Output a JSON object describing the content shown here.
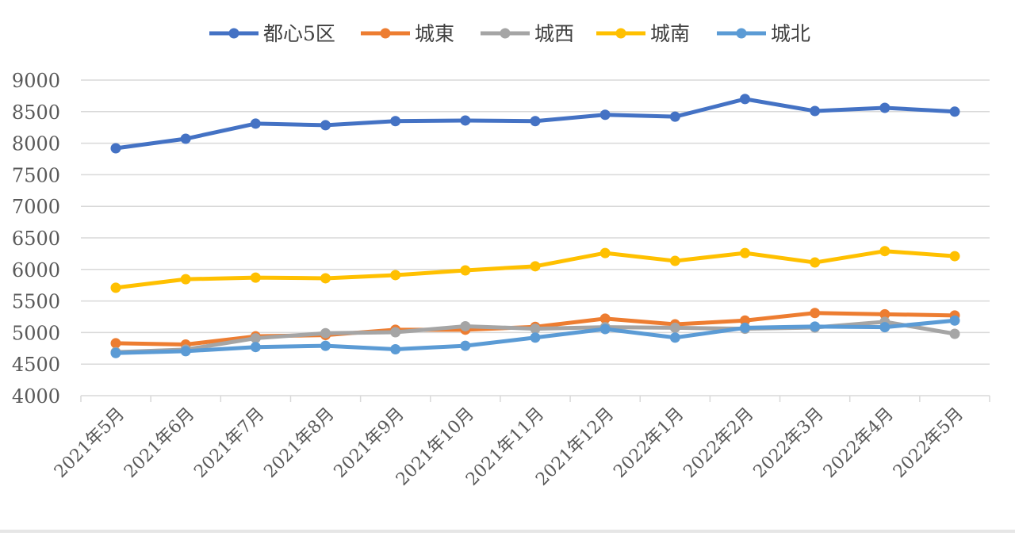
{
  "chart_data": {
    "type": "line",
    "title": "",
    "xlabel": "",
    "ylabel": "",
    "ylim": [
      4000,
      9000
    ],
    "yticks": [
      4000,
      4500,
      5000,
      5500,
      6000,
      6500,
      7000,
      7500,
      8000,
      8500,
      9000
    ],
    "grid": true,
    "legend_position": "top",
    "categories": [
      "2021年5月",
      "2021年6月",
      "2021年7月",
      "2021年8月",
      "2021年9月",
      "2021年10月",
      "2021年11月",
      "2021年12月",
      "2022年1月",
      "2022年2月",
      "2022年3月",
      "2022年4月",
      "2022年5月"
    ],
    "series": [
      {
        "name": "都心5区",
        "color": "#4472C4",
        "values": [
          7920,
          8070,
          8310,
          8285,
          8350,
          8360,
          8350,
          8450,
          8420,
          8700,
          8510,
          8560,
          8500
        ]
      },
      {
        "name": "城東",
        "color": "#ED7D31",
        "values": [
          4830,
          4810,
          4940,
          4960,
          5045,
          5045,
          5090,
          5220,
          5130,
          5190,
          5310,
          5290,
          5270
        ]
      },
      {
        "name": "城西",
        "color": "#A5A5A5",
        "values": [
          4690,
          4730,
          4910,
          4990,
          5005,
          5100,
          5060,
          5085,
          5075,
          5060,
          5080,
          5170,
          4980
        ]
      },
      {
        "name": "城南",
        "color": "#FFC000",
        "values": [
          5710,
          5845,
          5870,
          5860,
          5910,
          5985,
          6050,
          6260,
          6135,
          6260,
          6110,
          6290,
          6210
        ]
      },
      {
        "name": "城北",
        "color": "#5B9BD5",
        "values": [
          4675,
          4705,
          4770,
          4790,
          4735,
          4790,
          4920,
          5055,
          4920,
          5075,
          5095,
          5085,
          5190
        ]
      }
    ]
  }
}
